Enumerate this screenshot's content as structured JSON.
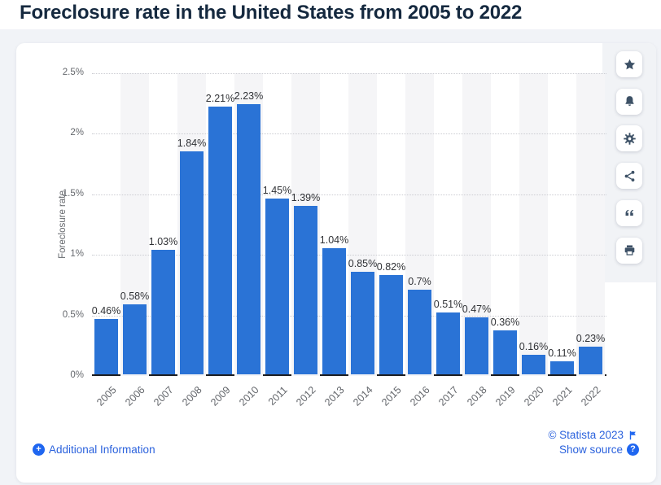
{
  "page_title": "Foreclosure rate in the United States from 2005 to 2022",
  "chart_data": {
    "type": "bar",
    "title": "Foreclosure rate in the United States from 2005 to 2022",
    "categories": [
      "2005",
      "2006",
      "2007",
      "2008",
      "2009",
      "2010",
      "2011",
      "2012",
      "2013",
      "2014",
      "2015",
      "2016",
      "2017",
      "2018",
      "2019",
      "2020",
      "2021",
      "2022"
    ],
    "values": [
      0.46,
      0.58,
      1.03,
      1.84,
      2.21,
      2.23,
      1.45,
      1.39,
      1.04,
      0.85,
      0.82,
      0.7,
      0.51,
      0.47,
      0.36,
      0.16,
      0.11,
      0.23
    ],
    "value_labels": [
      "0.46%",
      "0.58%",
      "1.03%",
      "1.84%",
      "2.21%",
      "2.23%",
      "1.45%",
      "1.39%",
      "1.04%",
      "0.85%",
      "0.82%",
      "0.7%",
      "0.51%",
      "0.47%",
      "0.36%",
      "0.16%",
      "0.11%",
      "0.23%"
    ],
    "xlabel": "",
    "ylabel": "Foreclosure rate",
    "ylim": [
      0,
      2.5
    ],
    "yticks": [
      {
        "value": 0,
        "label": "0%"
      },
      {
        "value": 0.5,
        "label": "0.5%"
      },
      {
        "value": 1,
        "label": "1%"
      },
      {
        "value": 1.5,
        "label": "1.5%"
      },
      {
        "value": 2,
        "label": "2%"
      },
      {
        "value": 2.5,
        "label": "2.5%"
      }
    ],
    "grid": "horizontal-dotted",
    "legend": "none",
    "bar_color": "#2a73d6",
    "stripe_color": "#f5f5f7"
  },
  "toolbar": {
    "buttons": [
      {
        "id": "favorite",
        "icon": "star-icon"
      },
      {
        "id": "notifications",
        "icon": "bell-icon"
      },
      {
        "id": "settings",
        "icon": "gear-icon"
      },
      {
        "id": "share",
        "icon": "share-icon"
      },
      {
        "id": "cite",
        "icon": "quote-icon"
      },
      {
        "id": "print",
        "icon": "print-icon"
      }
    ]
  },
  "footer": {
    "copyright": "© Statista 2023",
    "additional_information": "Additional Information",
    "show_source": "Show source"
  },
  "colors": {
    "bar_blue": "#2a73d6",
    "link_blue": "#2b62dd",
    "title_navy": "#15293f"
  }
}
